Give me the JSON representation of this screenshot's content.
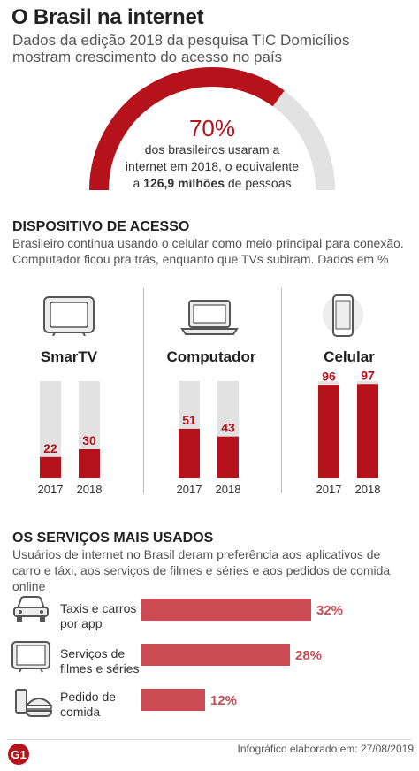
{
  "header": {
    "title": "O Brasil na internet",
    "subtitle": "Dados da edição 2018 da pesquisa TIC Domicílios mostram crescimento do acesso no país"
  },
  "highlight": {
    "percent_label": "70%",
    "value": 70,
    "text_line1": "dos brasileiros usaram a",
    "text_line2": "internet em 2018, o equivalente",
    "text_prefix": "a",
    "text_bold": "126,9 milhões",
    "text_suffix": "de pessoas"
  },
  "devices_section": {
    "title": "DISPOSITIVO DE ACESSO",
    "description": "Brasileiro continua usando o celular como meio principal para conexão. Computador ficou pra trás, enquanto que TVs subiram. Dados em %"
  },
  "services_section": {
    "title": "OS SERVIÇOS MAIS USADOS",
    "description": "Usuários de internet no Brasil deram preferência aos aplicativos de carro e táxi, aos serviços de filmes e séries e aos pedidos de comida online"
  },
  "chart_data": [
    {
      "type": "bar",
      "title": "SmarTV",
      "categories": [
        "2017",
        "2018"
      ],
      "values": [
        22,
        30
      ],
      "ylim": [
        0,
        100
      ]
    },
    {
      "type": "bar",
      "title": "Computador",
      "categories": [
        "2017",
        "2018"
      ],
      "values": [
        51,
        43
      ],
      "ylim": [
        0,
        100
      ]
    },
    {
      "type": "bar",
      "title": "Celular",
      "categories": [
        "2017",
        "2018"
      ],
      "values": [
        96,
        97
      ],
      "ylim": [
        0,
        100
      ]
    },
    {
      "type": "bar",
      "orientation": "horizontal",
      "categories": [
        "Taxis e carros por app",
        "Serviços de filmes e séries",
        "Pedido de comida"
      ],
      "values": [
        32,
        28,
        12
      ],
      "value_labels": [
        "32%",
        "28%",
        "12%"
      ]
    }
  ],
  "services": [
    {
      "line1": "Taxis e carros",
      "line2": "por app",
      "icon": "car-icon"
    },
    {
      "line1": "Serviços de",
      "line2": "filmes e séries",
      "icon": "tv-icon"
    },
    {
      "line1": "Pedido de",
      "line2": "comida",
      "icon": "food-icon"
    }
  ],
  "footer": {
    "logo": "G1",
    "credit": "Infográfico elaborado em: 27/08/2019"
  },
  "colors": {
    "accent": "#b5121b",
    "track": "#e2e2e2",
    "hbar": "#cc4a52"
  }
}
